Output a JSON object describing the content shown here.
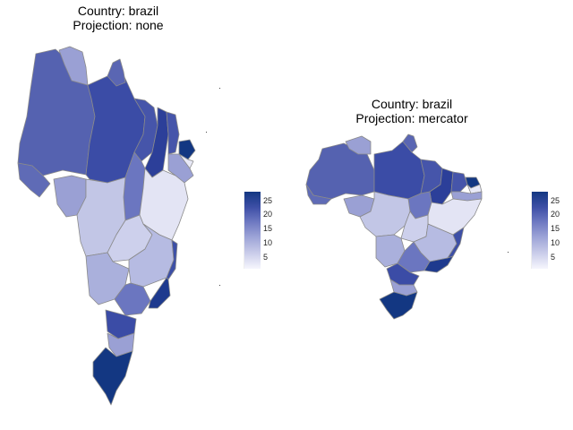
{
  "panels": [
    {
      "title_line1": "Country: brazil",
      "title_line2": "Projection: none"
    },
    {
      "title_line1": "Country: brazil",
      "title_line2": "Projection: mercator"
    }
  ],
  "legend": {
    "ticks": [
      "25",
      "20",
      "15",
      "10",
      "5"
    ],
    "values": [
      25,
      20,
      15,
      10,
      5
    ],
    "range": [
      2,
      28
    ],
    "color_low": "#f6f6fd",
    "color_high": "#133782"
  }
}
